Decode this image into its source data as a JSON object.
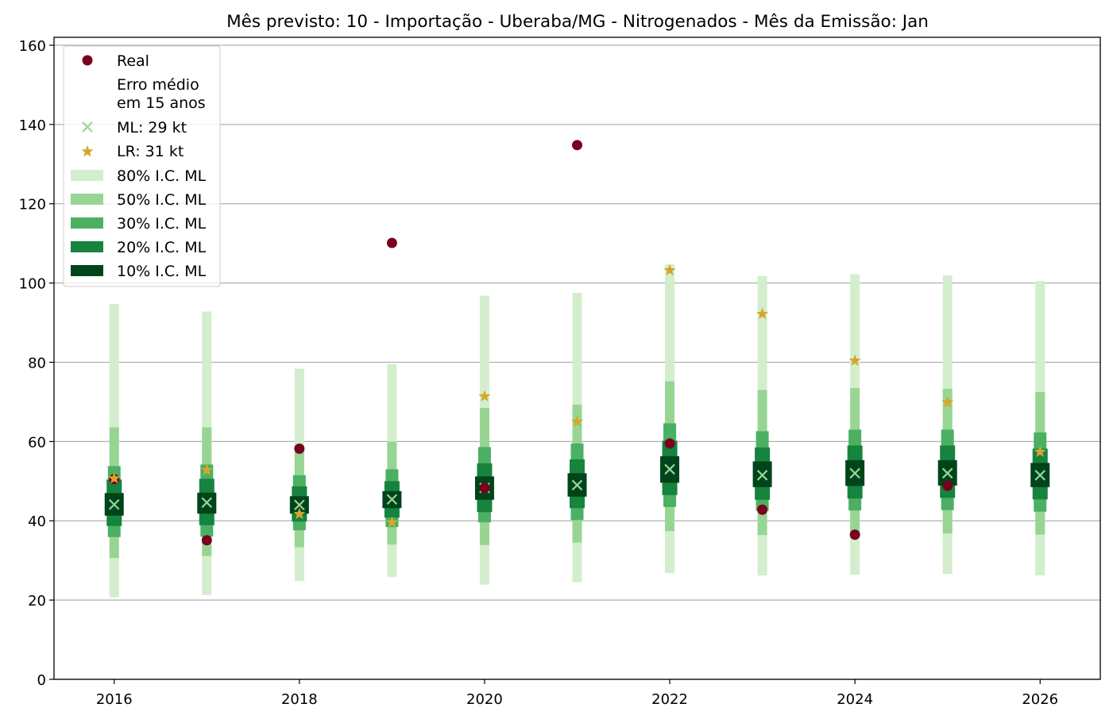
{
  "chart_data": {
    "type": "bar",
    "title": "Mês previsto: 10 - Importação - Uberaba/MG - Nitrogenados - Mês da Emissão: Jan",
    "xlabel": "",
    "ylabel": "",
    "xlim": [
      2015.35,
      2026.65
    ],
    "ylim": [
      0,
      162
    ],
    "xticks": [
      2016,
      2018,
      2020,
      2022,
      2024,
      2026
    ],
    "yticks": [
      0,
      20,
      40,
      60,
      80,
      100,
      120,
      140,
      160
    ],
    "grid": "horizontal",
    "legend_position": "top-left",
    "legend": {
      "real": "Real",
      "erro_line1": "Erro médio",
      "erro_line2": "em 15 anos",
      "ml": "ML: 29 kt",
      "lr": "LR: 31 kt",
      "ci80": "80% I.C. ML",
      "ci50": "50% I.C. ML",
      "ci30": "30% I.C. ML",
      "ci20": "20% I.C. ML",
      "ci10": "10% I.C. ML"
    },
    "colors": {
      "ci80": "#d3eecd",
      "ci50": "#98d594",
      "ci30": "#4bb062",
      "ci20": "#16833f",
      "ci10": "#00441b",
      "real": "#7a0020",
      "ml": "#98d594",
      "lr": "#d4a72c"
    },
    "years": [
      2016,
      2017,
      2018,
      2019,
      2020,
      2021,
      2022,
      2023,
      2024,
      2025,
      2026
    ],
    "ci80": [
      [
        20.7,
        94.7
      ],
      [
        21.3,
        92.8
      ],
      [
        24.8,
        78.4
      ],
      [
        25.8,
        79.5
      ],
      [
        23.9,
        96.8
      ],
      [
        24.5,
        97.5
      ],
      [
        26.8,
        104.7
      ],
      [
        26.2,
        101.8
      ],
      [
        26.4,
        102.2
      ],
      [
        26.6,
        101.9
      ],
      [
        26.2,
        100.5
      ]
    ],
    "ci50": [
      [
        30.6,
        63.6
      ],
      [
        31.1,
        63.6
      ],
      [
        33.3,
        57.8
      ],
      [
        34.0,
        60.0
      ],
      [
        33.9,
        68.5
      ],
      [
        34.5,
        69.3
      ],
      [
        37.4,
        75.2
      ],
      [
        36.4,
        73.0
      ],
      [
        36.6,
        73.5
      ],
      [
        36.8,
        73.3
      ],
      [
        36.5,
        72.5
      ]
    ],
    "ci30": [
      [
        35.9,
        53.8
      ],
      [
        36.0,
        54.2
      ],
      [
        37.6,
        51.5
      ],
      [
        38.4,
        53.0
      ],
      [
        39.6,
        58.6
      ],
      [
        40.2,
        59.5
      ],
      [
        43.5,
        64.6
      ],
      [
        42.5,
        62.6
      ],
      [
        42.6,
        63.0
      ],
      [
        42.7,
        63.0
      ],
      [
        42.3,
        62.3
      ]
    ],
    "ci20": [
      [
        38.7,
        50.4
      ],
      [
        38.9,
        50.6
      ],
      [
        39.8,
        48.7
      ],
      [
        40.8,
        50.0
      ],
      [
        42.2,
        54.5
      ],
      [
        43.2,
        55.5
      ],
      [
        46.5,
        60.2
      ],
      [
        45.3,
        58.5
      ],
      [
        45.6,
        59.0
      ],
      [
        45.8,
        59.0
      ],
      [
        45.4,
        58.2
      ]
    ],
    "ci10": [
      [
        41.3,
        47.0
      ],
      [
        41.8,
        47.1
      ],
      [
        41.8,
        46.2
      ],
      [
        43.2,
        47.5
      ],
      [
        45.3,
        51.2
      ],
      [
        46.1,
        52.0
      ],
      [
        49.6,
        56.3
      ],
      [
        48.5,
        55.0
      ],
      [
        48.8,
        55.3
      ],
      [
        48.9,
        55.3
      ],
      [
        48.5,
        54.6
      ]
    ],
    "ml": [
      44.1,
      44.6,
      44.0,
      45.4,
      48.3,
      49.0,
      53.0,
      51.5,
      52.0,
      52.0,
      51.5
    ],
    "lr": [
      50.7,
      52.8,
      41.7,
      39.6,
      71.4,
      65.0,
      103.2,
      92.2,
      80.4,
      69.9,
      57.4
    ],
    "real": [
      50.5,
      35.1,
      58.2,
      110.1,
      48.3,
      134.8,
      59.5,
      42.8,
      36.5,
      48.8,
      null
    ]
  }
}
